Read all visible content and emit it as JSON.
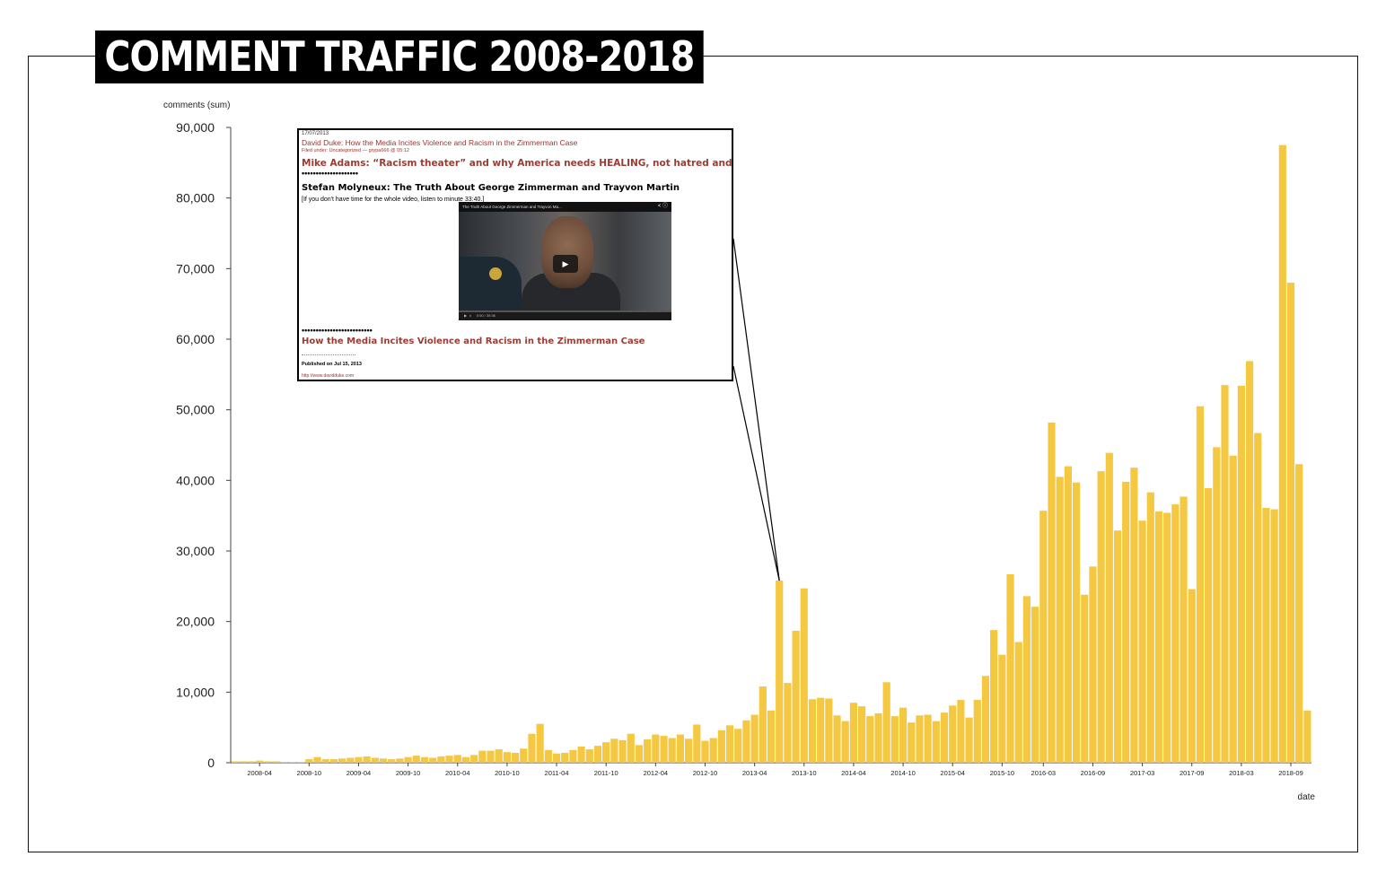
{
  "title": "COMMENT TRAFFIC 2008-2018",
  "chart_data": {
    "type": "bar",
    "ylabel": "comments (sum)",
    "xlabel": "date",
    "ylim": [
      0,
      90000
    ],
    "yticks": [
      0,
      10000,
      20000,
      30000,
      40000,
      50000,
      60000,
      70000,
      80000,
      90000
    ],
    "ytick_labels": [
      "0",
      "10,000",
      "20,000",
      "30,000",
      "40,000",
      "50,000",
      "60,000",
      "70,000",
      "80,000",
      "90,000"
    ],
    "xticks": [
      {
        "label": "2008-04",
        "x": "2008-04"
      },
      {
        "label": "2008-10",
        "x": "2008-10"
      },
      {
        "label": "2009-04",
        "x": "2009-04"
      },
      {
        "label": "2009-10",
        "x": "2009-10"
      },
      {
        "label": "2010-04",
        "x": "2010-04"
      },
      {
        "label": "2010-10",
        "x": "2010-10"
      },
      {
        "label": "2011-04",
        "x": "2011-04"
      },
      {
        "label": "2011-10",
        "x": "2011-10"
      },
      {
        "label": "2012-04",
        "x": "2012-04"
      },
      {
        "label": "2012-10",
        "x": "2012-10"
      },
      {
        "label": "2013-04",
        "x": "2013-04"
      },
      {
        "label": "2013-10",
        "x": "2013-10"
      },
      {
        "label": "2014-04",
        "x": "2014-04"
      },
      {
        "label": "2014-10",
        "x": "2014-10"
      },
      {
        "label": "2015-04",
        "x": "2015-04"
      },
      {
        "label": "2015-10",
        "x": "2015-10"
      },
      {
        "label": "2016-03",
        "x": "2016-03"
      },
      {
        "label": "2016-09",
        "x": "2016-09"
      },
      {
        "label": "2017-03",
        "x": "2017-03"
      },
      {
        "label": "2017-09",
        "x": "2017-09"
      },
      {
        "label": "2018-03",
        "x": "2018-03"
      },
      {
        "label": "2018-09",
        "x": "2018-09"
      }
    ],
    "color": "#f5c842",
    "x": [
      "2008-01",
      "2008-02",
      "2008-03",
      "2008-04",
      "2008-05",
      "2008-06",
      "2008-07",
      "2008-08",
      "2008-09",
      "2008-10",
      "2008-11",
      "2008-12",
      "2009-01",
      "2009-02",
      "2009-03",
      "2009-04",
      "2009-05",
      "2009-06",
      "2009-07",
      "2009-08",
      "2009-09",
      "2009-10",
      "2009-11",
      "2009-12",
      "2010-01",
      "2010-02",
      "2010-03",
      "2010-04",
      "2010-05",
      "2010-06",
      "2010-07",
      "2010-08",
      "2010-09",
      "2010-10",
      "2010-11",
      "2010-12",
      "2011-01",
      "2011-02",
      "2011-03",
      "2011-04",
      "2011-05",
      "2011-06",
      "2011-07",
      "2011-08",
      "2011-09",
      "2011-10",
      "2011-11",
      "2011-12",
      "2012-01",
      "2012-02",
      "2012-03",
      "2012-04",
      "2012-05",
      "2012-06",
      "2012-07",
      "2012-08",
      "2012-09",
      "2012-10",
      "2012-11",
      "2012-12",
      "2013-01",
      "2013-02",
      "2013-03",
      "2013-04",
      "2013-05",
      "2013-06",
      "2013-07",
      "2013-08",
      "2013-09",
      "2013-10",
      "2013-11",
      "2013-12",
      "2014-01",
      "2014-02",
      "2014-03",
      "2014-04",
      "2014-05",
      "2014-06",
      "2014-07",
      "2014-08",
      "2014-09",
      "2014-10",
      "2014-11",
      "2014-12",
      "2015-01",
      "2015-02",
      "2015-03",
      "2015-04",
      "2015-05",
      "2015-06",
      "2015-07",
      "2015-08",
      "2015-09",
      "2015-10",
      "2015-11",
      "2015-12",
      "2016-01",
      "2016-02",
      "2016-03",
      "2016-04",
      "2016-05",
      "2016-06",
      "2016-07",
      "2016-08",
      "2016-09",
      "2016-10",
      "2016-11",
      "2016-12",
      "2017-01",
      "2017-02",
      "2017-03",
      "2017-04",
      "2017-05",
      "2017-06",
      "2017-07",
      "2017-08",
      "2017-09",
      "2017-10",
      "2017-11",
      "2017-12",
      "2018-01",
      "2018-02",
      "2018-03",
      "2018-04",
      "2018-05",
      "2018-06",
      "2018-07",
      "2018-08",
      "2018-09",
      "2018-10",
      "2018-11"
    ],
    "values": [
      200,
      200,
      200,
      300,
      200,
      200,
      100,
      100,
      100,
      500,
      800,
      500,
      500,
      600,
      700,
      800,
      900,
      700,
      600,
      500,
      600,
      800,
      1000,
      800,
      700,
      900,
      1000,
      1100,
      800,
      1100,
      1700,
      1700,
      1900,
      1500,
      1400,
      2000,
      4100,
      5500,
      1800,
      1300,
      1400,
      1800,
      2300,
      1900,
      2400,
      2900,
      3400,
      3200,
      4100,
      2500,
      3300,
      4000,
      3800,
      3500,
      4000,
      3400,
      5400,
      3100,
      3500,
      4600,
      5300,
      4800,
      6000,
      6800,
      10800,
      7400,
      25800,
      11300,
      18700,
      24700,
      9000,
      9200,
      9100,
      6700,
      5900,
      8500,
      8000,
      6600,
      7000,
      11400,
      6600,
      7800,
      5700,
      6700,
      6800,
      5900,
      7100,
      8100,
      8900,
      6400,
      8900,
      12300,
      18800,
      15300,
      26700,
      17100,
      23600,
      22100,
      35700,
      48200,
      40500,
      42000,
      39700,
      23800,
      27800,
      41300,
      43900,
      32900,
      39800,
      41800,
      34300,
      38300,
      35600,
      35400,
      36600,
      37700,
      24600,
      50500,
      38900,
      44700,
      53500,
      43500,
      53400,
      56900,
      46700,
      36100,
      35900,
      87500,
      68000,
      42300,
      7400
    ]
  },
  "popup": {
    "date": "17/07/2013",
    "link_top": "David Duke: How the Media Incites Violence and Racism in the Zimmerman Case",
    "meta": "Filed under: Uncategorized — grypa666 @ 05:12",
    "heading1": "Mike Adams: “Racism theater” and why America needs HEALING, not hatred and division",
    "dots1": "••••••••••••••••••••",
    "heading2": "Stefan Molyneux: The Truth About George Zimmerman and Trayvon Martin",
    "note": "[If you don't have time for the whole video, listen to minute 33:40.]",
    "video_title": "The Truth About George Zimmerman and Trayvon Ma...",
    "video_time": "0:00 / 35:36",
    "dots2": "•••••••••••••••••••••••••",
    "heading3": "How the Media Incites Violence and Racism in the Zimmerman Case",
    "published": "Published on Jul 15, 2013",
    "url": "http://www.davidduke.com"
  }
}
